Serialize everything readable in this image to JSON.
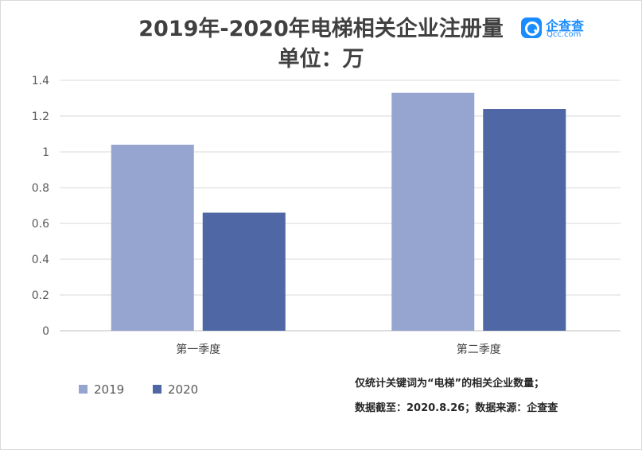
{
  "chart_data": {
    "type": "bar",
    "title": "2019年-2020年电梯相关企业注册量",
    "subtitle": "单位：万",
    "categories": [
      "第一季度",
      "第二季度"
    ],
    "series": [
      {
        "name": "2019",
        "values": [
          1.04,
          1.33
        ],
        "color": "#95a5cf"
      },
      {
        "name": "2020",
        "values": [
          0.66,
          1.24
        ],
        "color": "#4f67a4"
      }
    ],
    "yticks": [
      "0",
      "0.2",
      "0.4",
      "0.6",
      "0.8",
      "1",
      "1.2",
      "1.4"
    ],
    "ylim": [
      0,
      1.4
    ],
    "xlabel": "",
    "ylabel": "",
    "grid": true,
    "legend_position": "bottom-left"
  },
  "logo": {
    "cn_text": "企查查",
    "en_text": "Qcc.com"
  },
  "notes": {
    "line1": "仅统计关键词为“电梯”的相关企业数量；",
    "line2": "数据截至：2020.8.26；数据来源：企查查"
  }
}
